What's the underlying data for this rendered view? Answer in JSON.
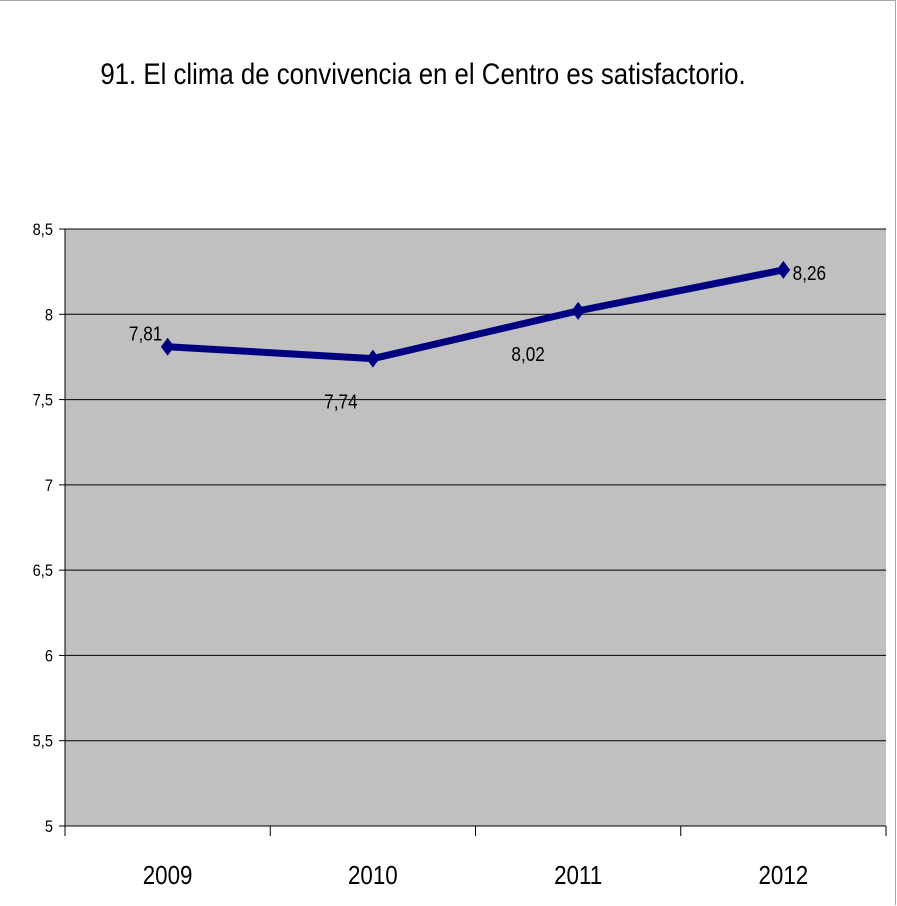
{
  "chart_data": {
    "type": "line",
    "title": "91. El clima de convivencia en el Centro es satisfactorio.",
    "categories": [
      "2009",
      "2010",
      "2011",
      "2012"
    ],
    "series": [
      {
        "values": [
          7.81,
          7.74,
          8.02,
          8.26
        ],
        "data_labels": [
          "7,81",
          "7,74",
          "8,02",
          "8,26"
        ]
      }
    ],
    "ylim": [
      5,
      8.5
    ],
    "yticks": [
      5,
      5.5,
      6,
      6.5,
      7,
      7.5,
      8,
      8.5
    ],
    "ytick_labels": [
      "5",
      "5,5",
      "6",
      "6,5",
      "7",
      "7,5",
      "8",
      "8,5"
    ],
    "xlabel": "",
    "ylabel": "",
    "grid": true,
    "legend": "none",
    "colors": {
      "plot_area": "#c0c0c0",
      "gridline": "#000000",
      "series_line": "#000080"
    },
    "marker": "diamond"
  }
}
